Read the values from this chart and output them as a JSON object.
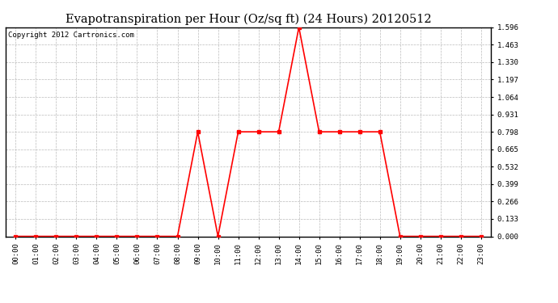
{
  "title": "Evapotranspiration per Hour (Oz/sq ft) (24 Hours) 20120512",
  "copyright_text": "Copyright 2012 Cartronics.com",
  "hours": [
    0,
    1,
    2,
    3,
    4,
    5,
    6,
    7,
    8,
    9,
    10,
    11,
    12,
    13,
    14,
    15,
    16,
    17,
    18,
    19,
    20,
    21,
    22,
    23
  ],
  "values": [
    0.0,
    0.0,
    0.0,
    0.0,
    0.0,
    0.0,
    0.0,
    0.0,
    0.0,
    0.798,
    0.0,
    0.798,
    0.798,
    0.798,
    1.596,
    0.798,
    0.798,
    0.798,
    0.798,
    0.0,
    0.0,
    0.0,
    0.0,
    0.0
  ],
  "x_labels": [
    "00:00",
    "01:00",
    "02:00",
    "03:00",
    "04:00",
    "05:00",
    "06:00",
    "07:00",
    "08:00",
    "09:00",
    "10:00",
    "11:00",
    "12:00",
    "13:00",
    "14:00",
    "15:00",
    "16:00",
    "17:00",
    "18:00",
    "19:00",
    "20:00",
    "21:00",
    "22:00",
    "23:00"
  ],
  "y_ticks": [
    0.0,
    0.133,
    0.266,
    0.399,
    0.532,
    0.665,
    0.798,
    0.931,
    1.064,
    1.197,
    1.33,
    1.463,
    1.596
  ],
  "line_color": "#ff0000",
  "marker": "s",
  "marker_size": 2.5,
  "line_width": 1.2,
  "bg_color": "#ffffff",
  "plot_bg_color": "#ffffff",
  "grid_color": "#bbbbbb",
  "title_fontsize": 10.5,
  "copyright_fontsize": 6.5,
  "tick_fontsize": 6.5,
  "ylim": [
    0.0,
    1.596
  ],
  "xlim": [
    -0.5,
    23.5
  ]
}
